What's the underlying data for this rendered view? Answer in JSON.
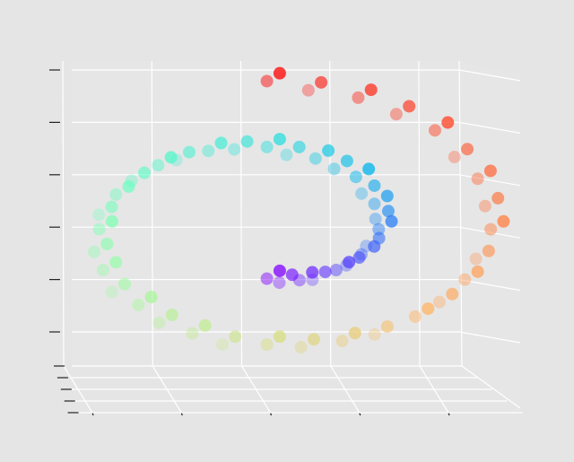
{
  "chart_data": {
    "type": "scatter3d",
    "colormap": "rainbow",
    "grid": true,
    "xlim": [
      -12,
      14
    ],
    "xticks": [
      -10,
      -5,
      0,
      5,
      10
    ],
    "ylim": [
      0,
      20
    ],
    "yticks": [
      0,
      5,
      10,
      15,
      20
    ],
    "zlim": [
      -12,
      16
    ],
    "zticks": [
      -10,
      -5,
      0,
      5,
      10,
      15
    ],
    "x": [
      0,
      0.96,
      1.96,
      2.95,
      3.89,
      4.73,
      5.44,
      5.97,
      6.28,
      6.36,
      6.17,
      5.71,
      5.0,
      4.04,
      2.86,
      1.49,
      0,
      -1.57,
      -3.16,
      -4.69,
      -6.11,
      -7.34,
      -8.35,
      -9.05,
      -9.42,
      -9.44,
      -9.07,
      -8.32,
      -7.22,
      -5.79,
      -4.06,
      -2.11,
      0,
      2.18,
      4.36,
      6.44,
      8.33,
      9.95,
      11.25,
      12.13,
      12.57,
      12.52,
      11.97,
      10.93,
      9.44,
      7.53,
      5.26,
      2.72,
      0,
      0,
      0.96,
      1.96,
      2.95,
      3.89,
      4.73,
      5.44,
      5.97,
      6.28,
      6.36,
      6.17,
      5.71,
      5.0,
      4.04,
      2.86,
      1.49,
      0,
      -1.57,
      -3.16,
      -4.69,
      -6.11,
      -7.34,
      -8.35,
      -9.05,
      -9.42,
      -9.44,
      -9.07,
      -8.32,
      -7.22,
      -5.79,
      -4.06,
      -2.11,
      0,
      2.18,
      4.36,
      6.44,
      8.33,
      9.95,
      11.25,
      12.13,
      12.57,
      12.52,
      11.97,
      10.93,
      9.44,
      7.53,
      5.26,
      2.72,
      0
    ],
    "y": [
      2,
      6,
      4,
      8,
      2,
      6,
      4,
      8,
      2,
      6,
      4,
      8,
      2,
      6,
      4,
      8,
      2,
      6,
      4,
      8,
      2,
      6,
      4,
      8,
      2,
      6,
      4,
      8,
      2,
      6,
      4,
      8,
      2,
      6,
      4,
      8,
      2,
      6,
      4,
      8,
      2,
      6,
      4,
      8,
      2,
      6,
      4,
      8,
      2,
      13,
      17,
      15,
      19,
      13,
      17,
      15,
      19,
      13,
      17,
      15,
      19,
      13,
      17,
      15,
      19,
      13,
      17,
      15,
      19,
      13,
      17,
      15,
      19,
      13,
      17,
      15,
      19,
      13,
      17,
      15,
      19,
      13,
      17,
      15,
      19,
      13,
      17,
      15,
      19,
      13,
      17,
      15,
      19,
      13,
      17,
      15,
      19,
      13
    ],
    "z": [
      -4.71,
      -4.82,
      -4.72,
      -4.41,
      -3.89,
      -3.17,
      -2.26,
      -1.19,
      0,
      1.26,
      2.56,
      3.82,
      5.0,
      6.04,
      6.89,
      7.51,
      7.85,
      7.9,
      7.62,
      7.02,
      6.11,
      4.91,
      3.46,
      1.8,
      0,
      -1.88,
      -3.76,
      -5.57,
      -7.22,
      -8.65,
      -9.8,
      -10.59,
      -11.0,
      -10.98,
      -10.52,
      -9.63,
      -8.33,
      -6.66,
      -4.66,
      -2.41,
      0,
      2.49,
      4.96,
      7.31,
      9.44,
      11.26,
      12.7,
      13.68,
      14.14,
      -4.71,
      -4.82,
      -4.72,
      -4.41,
      -3.89,
      -3.17,
      -2.26,
      -1.19,
      0,
      1.26,
      2.56,
      3.82,
      5.0,
      6.04,
      6.89,
      7.51,
      7.85,
      7.9,
      7.62,
      7.02,
      6.11,
      4.91,
      3.46,
      1.8,
      0,
      -1.88,
      -3.76,
      -5.57,
      -7.22,
      -8.65,
      -9.8,
      -10.59,
      -11.0,
      -10.98,
      -10.52,
      -9.63,
      -8.33,
      -6.66,
      -4.66,
      -2.41,
      0,
      2.49,
      4.96,
      7.31,
      9.44,
      11.26,
      12.7,
      13.68,
      14.14
    ],
    "c": [
      4.71,
      4.91,
      5.11,
      5.3,
      5.5,
      5.69,
      5.89,
      6.09,
      6.28,
      6.48,
      6.68,
      6.87,
      7.07,
      7.27,
      7.46,
      7.66,
      7.85,
      8.05,
      8.25,
      8.44,
      8.64,
      8.84,
      9.03,
      9.23,
      9.42,
      9.62,
      9.82,
      10.01,
      10.21,
      10.41,
      10.6,
      10.8,
      11.0,
      11.19,
      11.39,
      11.59,
      11.78,
      11.98,
      12.17,
      12.37,
      12.57,
      12.76,
      12.96,
      13.16,
      13.35,
      13.55,
      13.74,
      13.94,
      14.14,
      4.71,
      4.91,
      5.11,
      5.3,
      5.5,
      5.69,
      5.89,
      6.09,
      6.28,
      6.48,
      6.68,
      6.87,
      7.07,
      7.27,
      7.46,
      7.66,
      7.85,
      8.05,
      8.25,
      8.44,
      8.64,
      8.84,
      9.03,
      9.23,
      9.42,
      9.62,
      9.82,
      10.01,
      10.21,
      10.41,
      10.6,
      10.8,
      11.0,
      11.19,
      11.39,
      11.59,
      11.78,
      11.98,
      12.17,
      12.37,
      12.57,
      12.76,
      12.96,
      13.16,
      13.35,
      13.55,
      13.74,
      13.94,
      14.14
    ]
  }
}
